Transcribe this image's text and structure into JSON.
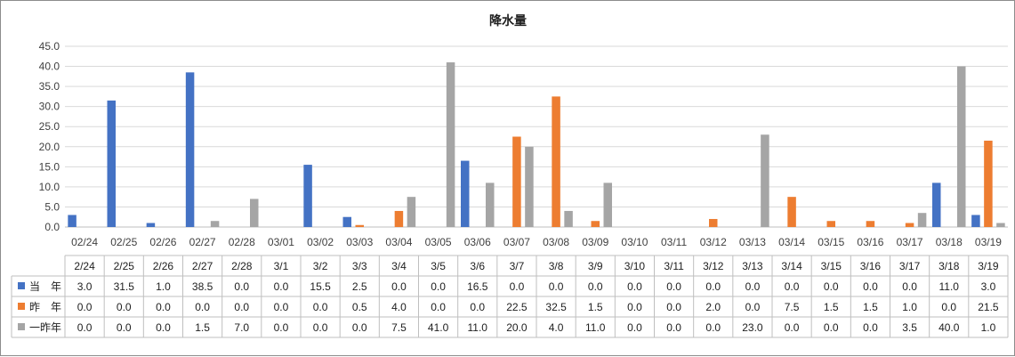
{
  "chart_data": {
    "type": "bar",
    "title": "降水量",
    "ylim": [
      0,
      45
    ],
    "yticks": [
      "0.0",
      "5.0",
      "10.0",
      "15.0",
      "20.0",
      "25.0",
      "30.0",
      "35.0",
      "40.0",
      "45.0"
    ],
    "categories": [
      "02/24",
      "02/25",
      "02/26",
      "02/27",
      "02/28",
      "03/01",
      "03/02",
      "03/03",
      "03/04",
      "03/05",
      "03/06",
      "03/07",
      "03/08",
      "03/09",
      "03/10",
      "03/11",
      "03/12",
      "03/13",
      "03/14",
      "03/15",
      "03/16",
      "03/17",
      "03/18",
      "03/19"
    ],
    "table_header": [
      "2/24",
      "2/25",
      "2/26",
      "2/27",
      "2/28",
      "3/1",
      "3/2",
      "3/3",
      "3/4",
      "3/5",
      "3/6",
      "3/7",
      "3/8",
      "3/9",
      "3/10",
      "3/11",
      "3/12",
      "3/13",
      "3/14",
      "3/15",
      "3/16",
      "3/17",
      "3/18",
      "3/19"
    ],
    "series": [
      {
        "name": "当　年",
        "color": "#4472C4",
        "values": [
          3.0,
          31.5,
          1.0,
          38.5,
          0.0,
          0.0,
          15.5,
          2.5,
          0.0,
          0.0,
          16.5,
          0.0,
          0.0,
          0.0,
          0.0,
          0.0,
          0.0,
          0.0,
          0.0,
          0.0,
          0.0,
          0.0,
          11.0,
          3.0
        ]
      },
      {
        "name": "昨　年",
        "color": "#ED7D31",
        "values": [
          0.0,
          0.0,
          0.0,
          0.0,
          0.0,
          0.0,
          0.0,
          0.5,
          4.0,
          0.0,
          0.0,
          22.5,
          32.5,
          1.5,
          0.0,
          0.0,
          2.0,
          0.0,
          7.5,
          1.5,
          1.5,
          1.0,
          0.0,
          21.5
        ]
      },
      {
        "name": "一昨年",
        "color": "#A5A5A5",
        "values": [
          0.0,
          0.0,
          0.0,
          1.5,
          7.0,
          0.0,
          0.0,
          0.0,
          7.5,
          41.0,
          11.0,
          20.0,
          4.0,
          11.0,
          0.0,
          0.0,
          0.0,
          23.0,
          0.0,
          0.0,
          0.0,
          3.5,
          40.0,
          1.0
        ]
      }
    ],
    "grid": true,
    "legend": "data-table"
  }
}
